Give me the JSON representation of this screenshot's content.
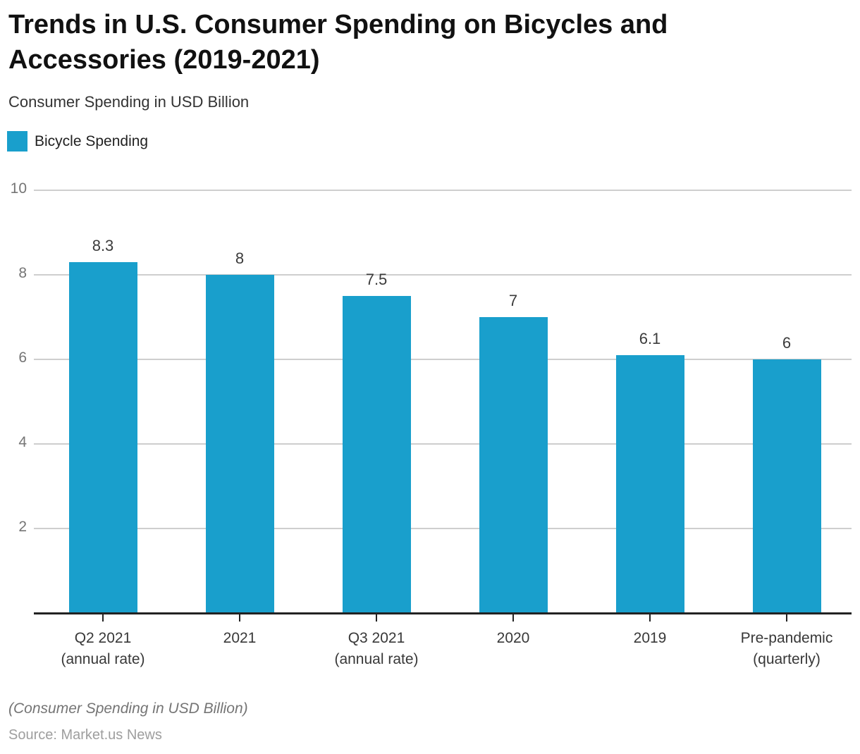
{
  "footer": {
    "note": "(Consumer Spending in USD Billion)",
    "source": "Source: Market.us News"
  },
  "colors": {
    "bar": "#199fcc",
    "gridline": "#cecece",
    "axis": "#222222"
  },
  "chart_data": {
    "type": "bar",
    "title": "Trends in U.S. Consumer Spending on Bicycles and Accessories (2019-2021)",
    "subtitle": "Consumer Spending in USD Billion",
    "legend": [
      {
        "name": "Bicycle Spending",
        "color": "#199fcc"
      }
    ],
    "legend_position": "top-left",
    "categories": [
      "Q2 2021\n(annual rate)",
      "2021",
      "Q3 2021\n(annual rate)",
      "2020",
      "2019",
      "Pre-pandemic\n(quarterly)"
    ],
    "series": [
      {
        "name": "Bicycle Spending",
        "values": [
          8.3,
          8,
          7.5,
          7,
          6.1,
          6
        ]
      }
    ],
    "value_labels": [
      "8.3",
      "8",
      "7.5",
      "7",
      "6.1",
      "6"
    ],
    "xlabel": "",
    "ylabel": "",
    "ylim": [
      0,
      10
    ],
    "yticks": [
      2,
      4,
      6,
      8,
      10
    ],
    "grid": true
  }
}
